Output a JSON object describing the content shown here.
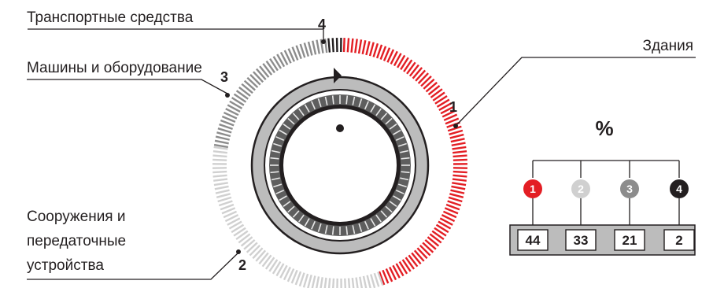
{
  "chart_data": {
    "type": "pie",
    "unit": "%",
    "slices": [
      {
        "id": "1",
        "label": "Здания",
        "value": 44,
        "color": "#e31e24"
      },
      {
        "id": "2",
        "label": "Сооружения и передаточные устройства",
        "label_lines": [
          "Сооружения и",
          "передаточные",
          "устройства"
        ],
        "value": 33,
        "color": "#d0d0d0"
      },
      {
        "id": "3",
        "label": "Машины и оборудование",
        "value": 21,
        "color": "#8c8c8c"
      },
      {
        "id": "4",
        "label": "Транспортные средства",
        "value": 2,
        "color": "#231f20"
      }
    ]
  }
}
